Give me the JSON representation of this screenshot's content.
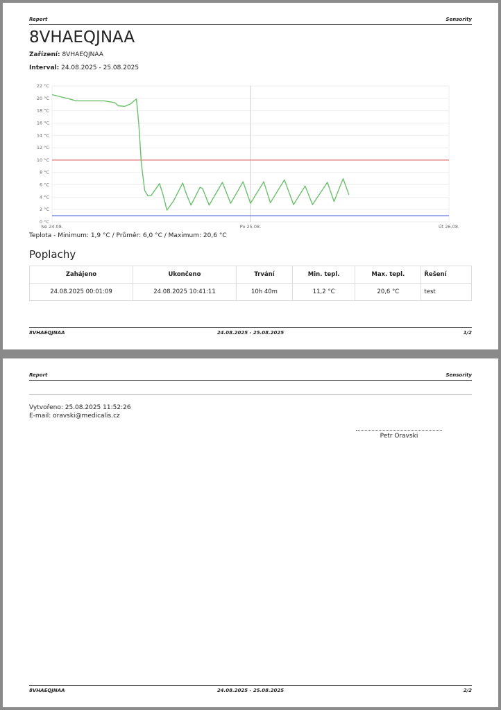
{
  "page1": {
    "header": {
      "left": "Report",
      "right": "Sensority"
    },
    "title": "8VHAEQJNAA",
    "device": {
      "label": "Zařízení:",
      "value": "8VHAEQJNAA"
    },
    "interval": {
      "label": "Interval:",
      "value": "24.08.2025 - 25.08.2025"
    },
    "chart_caption": "Teplota - Minimum: 1,9 °C / Průměr: 6,0 °C / Maximum: 20,6 °C",
    "section_title": "Poplachy",
    "table": {
      "headers": [
        "Zahájeno",
        "Ukončeno",
        "Trvání",
        "Min. tepl.",
        "Max. tepl.",
        "Řešení"
      ],
      "rows": [
        [
          "24.08.2025 00:01:09",
          "24.08.2025 10:41:11",
          "10h 40m",
          "11,2 °C",
          "20,6 °C",
          "test"
        ]
      ]
    },
    "footer": {
      "left": "8VHAEQJNAA",
      "center": "24.08.2025 - 25.08.2025",
      "right": "1/2"
    }
  },
  "chart_data": {
    "type": "line",
    "color": "#6cbf6c",
    "x": [
      0,
      2.1,
      2.9,
      4.6,
      6.3,
      7.6,
      8.0,
      8.8,
      9.5,
      10.2,
      10.5,
      10.8,
      11.2,
      11.6,
      12.0,
      13.0,
      13.4,
      13.9,
      14.7,
      15.8,
      16.2,
      16.8,
      17.9,
      18.2,
      19.0,
      20.6,
      21.6,
      23.1,
      24.0,
      25.6,
      26.4,
      28.1,
      29.2,
      30.6,
      31.5,
      33.3,
      34.1,
      35.2,
      35.9
    ],
    "values": [
      20.6,
      19.9,
      19.6,
      19.6,
      19.6,
      19.3,
      18.8,
      18.7,
      19.1,
      19.9,
      15.7,
      9.5,
      5.1,
      4.2,
      4.3,
      6.2,
      4.5,
      1.9,
      3.4,
      6.3,
      4.7,
      2.7,
      5.6,
      5.4,
      2.7,
      6.4,
      3.0,
      6.5,
      3.0,
      6.5,
      3.1,
      6.8,
      2.8,
      5.8,
      2.8,
      6.4,
      3.3,
      7.0,
      4.4
    ],
    "xlim": [
      0,
      48
    ],
    "xticks": [
      {
        "value": 0,
        "label": "Ne 24.08."
      },
      {
        "value": 24,
        "label": "Po 25.08."
      },
      {
        "value": 48,
        "label": "Út 26.08."
      }
    ],
    "ylim": [
      0,
      22
    ],
    "yticks": [
      {
        "value": 0,
        "label": "0 °C"
      },
      {
        "value": 2,
        "label": "2 °C"
      },
      {
        "value": 4,
        "label": "4 °C"
      },
      {
        "value": 6,
        "label": "6 °C"
      },
      {
        "value": 8,
        "label": "8 °C"
      },
      {
        "value": 10,
        "label": "10 °C"
      },
      {
        "value": 12,
        "label": "12 °C"
      },
      {
        "value": 14,
        "label": "14 °C"
      },
      {
        "value": 16,
        "label": "16 °C"
      },
      {
        "value": 18,
        "label": "18 °C"
      },
      {
        "value": 20,
        "label": "20 °C"
      },
      {
        "value": 22,
        "label": "22 °C"
      }
    ],
    "grid": true,
    "thresholds": [
      {
        "value": 10,
        "color": "#e07070"
      },
      {
        "value": 1,
        "color": "#5a6fe0"
      }
    ]
  },
  "page2": {
    "header": {
      "left": "Report",
      "right": "Sensority"
    },
    "created": "Vytvořeno: 25.08.2025 11:52:26",
    "email": "E-mail: oravski@medicalis.cz",
    "signature": "Petr Oravski",
    "footer": {
      "left": "8VHAEQJNAA",
      "center": "24.08.2025 - 25.08.2025",
      "right": "2/2"
    }
  }
}
